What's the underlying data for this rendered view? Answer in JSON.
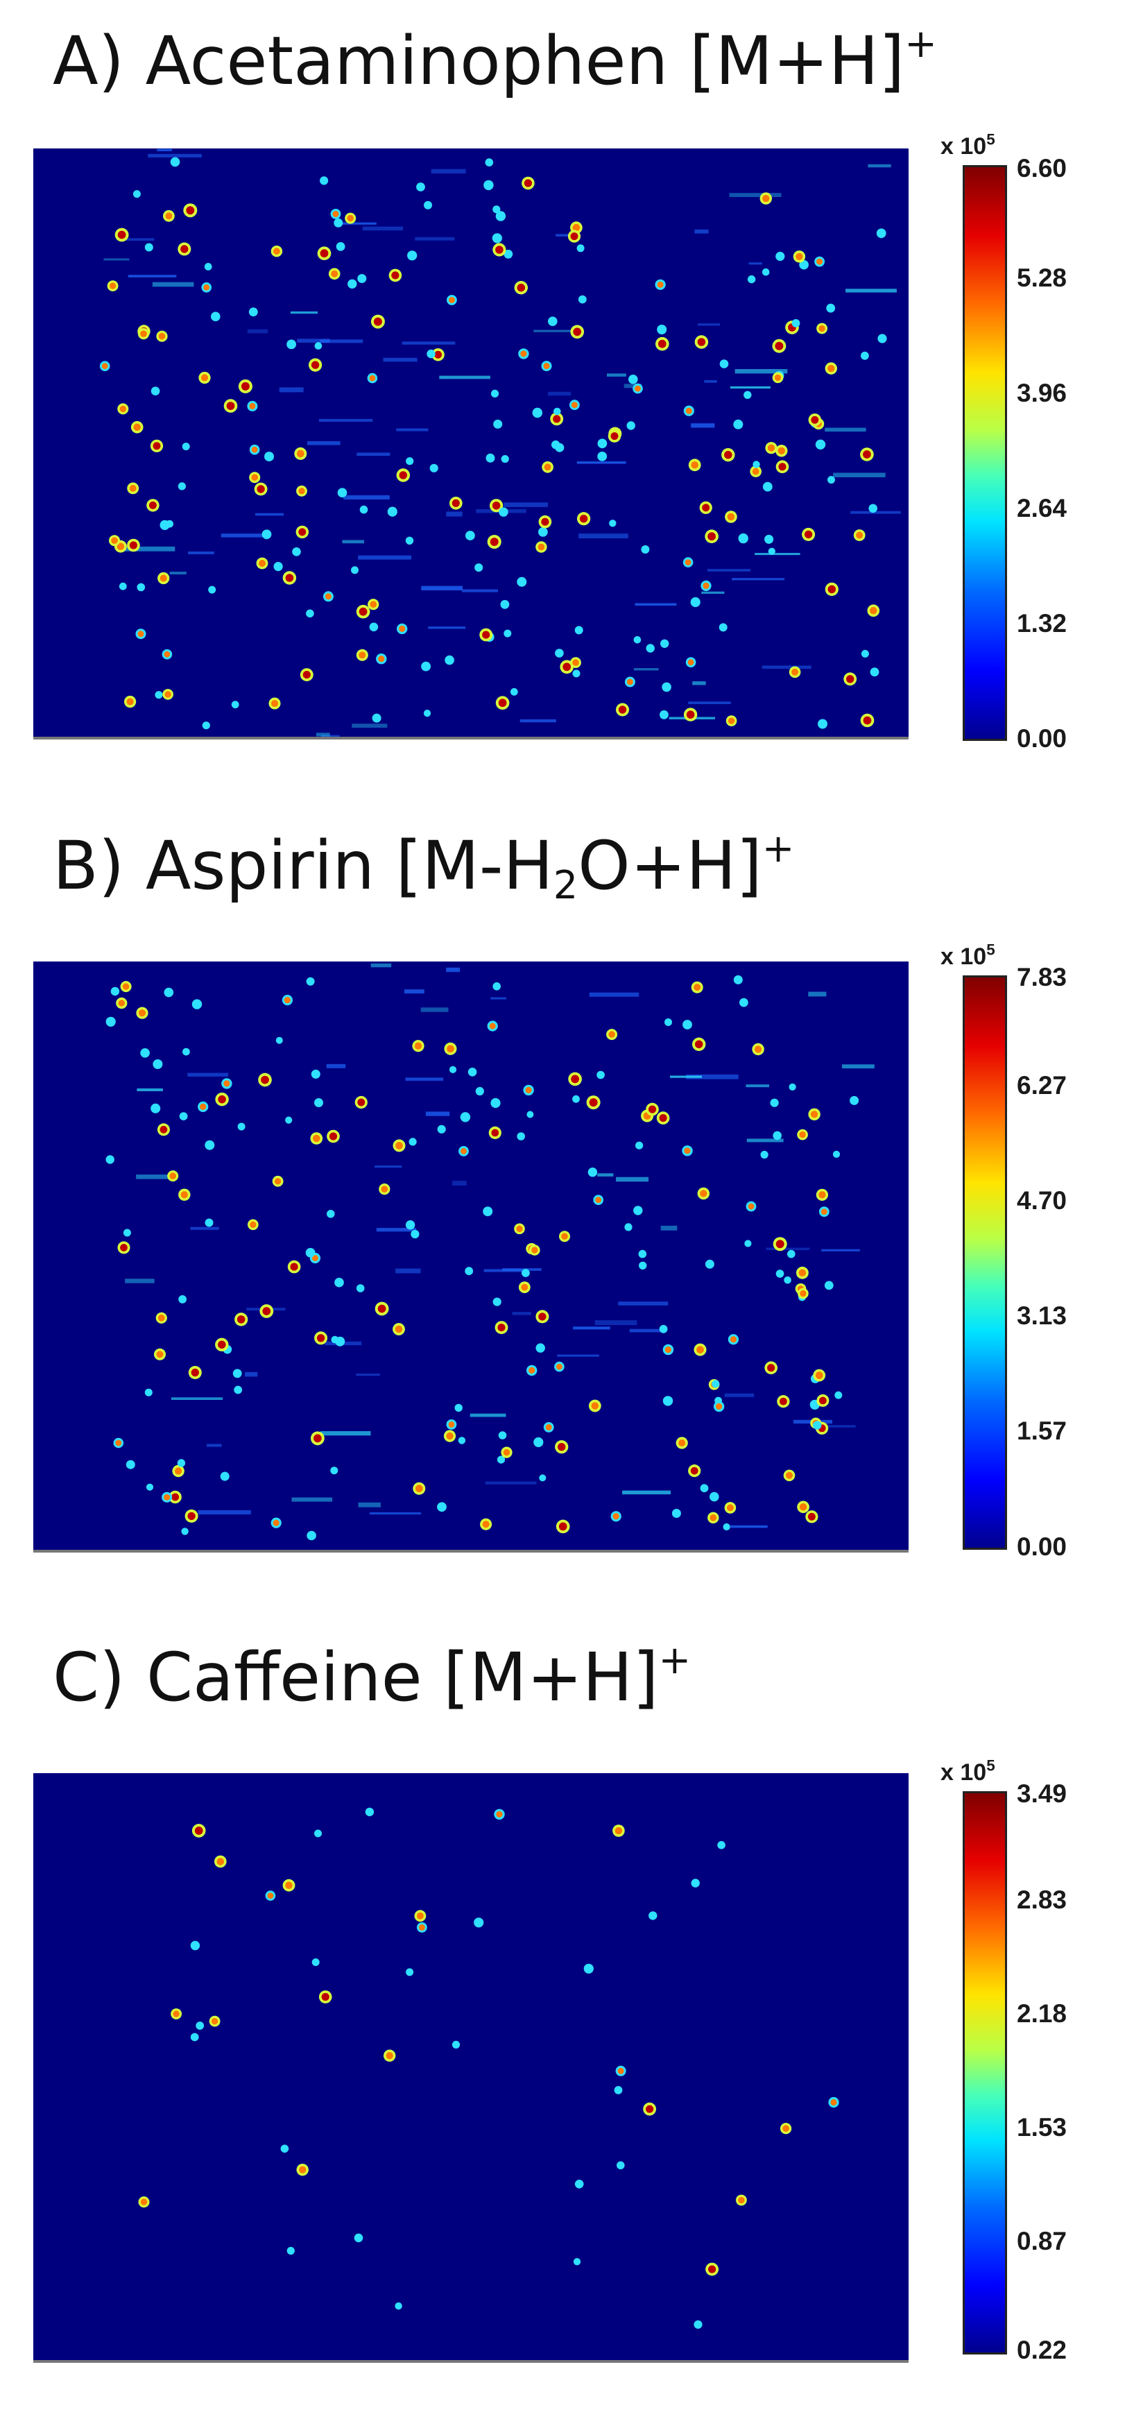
{
  "chart_data": [
    {
      "type": "heatmap",
      "title": "A) Acetaminophen [M+H]",
      "title_superscript": "+",
      "colorbar": {
        "scale_label": "x 10",
        "scale_exponent": "5",
        "ticks": [
          "0.00",
          "1.32",
          "2.64",
          "3.96",
          "5.28",
          "6.60"
        ],
        "range": [
          0.0,
          6.6
        ],
        "colormap": "jet"
      },
      "hotspot_density": "high",
      "grid": false
    },
    {
      "type": "heatmap",
      "title": "B) Aspirin [M-H",
      "title_sub_text": "2",
      "title_tail": "O+H]",
      "title_superscript": "+",
      "colorbar": {
        "scale_label": "x 10",
        "scale_exponent": "5",
        "ticks": [
          "0.00",
          "1.57",
          "3.13",
          "4.70",
          "6.27",
          "7.83"
        ],
        "range": [
          0.0,
          7.83
        ],
        "colormap": "jet"
      },
      "hotspot_density": "high",
      "grid": false
    },
    {
      "type": "heatmap",
      "title": "C) Caffeine [M+H]",
      "title_superscript": "+",
      "colorbar": {
        "scale_label": "x 10",
        "scale_exponent": "5",
        "ticks": [
          "0.22",
          "0.87",
          "1.53",
          "2.18",
          "2.83",
          "3.49"
        ],
        "range": [
          0.22,
          3.49
        ],
        "colormap": "jet"
      },
      "hotspot_density": "low",
      "grid": false
    }
  ],
  "colors": {
    "background": "#00007f",
    "low": "#0000ff",
    "mid": "#b8ff47",
    "high": "#800000"
  }
}
